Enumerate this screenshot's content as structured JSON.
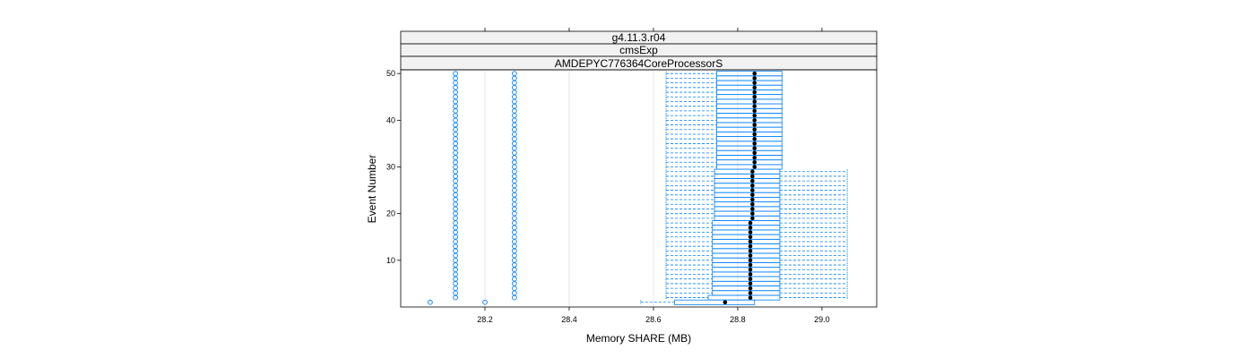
{
  "chart_data": {
    "type": "boxplot",
    "panel_strips": [
      "g4.11.3.r04",
      "cmsExp",
      "AMDEPYC776364CoreProcessorS"
    ],
    "xlabel": "Memory SHARE (MB)",
    "ylabel": "Event Number",
    "xlim": [
      28.0,
      29.13
    ],
    "ylim": [
      0,
      50.8
    ],
    "x_ticks": [
      28.2,
      28.4,
      28.6,
      28.8,
      29.0
    ],
    "x_tick_labels": [
      "28.2",
      "28.4",
      "28.6",
      "28.8",
      "29.0"
    ],
    "y_ticks": [
      10,
      20,
      30,
      40,
      50
    ],
    "y_tick_labels": [
      "10",
      "20",
      "30",
      "40",
      "50"
    ],
    "grid_x": [
      28.2,
      28.4,
      28.6,
      28.8
    ],
    "colors": {
      "box": "#0080ff",
      "median": "#000000",
      "strip": "#f2f2f2",
      "outlier": "#0080ff"
    },
    "event1": {
      "y": 1,
      "whisker_low": 28.57,
      "q1": 28.65,
      "median": 28.77,
      "q3": 28.84,
      "whisker_high": 28.84,
      "outliers": [
        28.07,
        28.2
      ]
    },
    "events": {
      "y_from": 2,
      "y_to": 50,
      "whisker_low": 28.63,
      "outliers": [
        28.13,
        28.27
      ],
      "groups": [
        {
          "y_from": 2,
          "y_to": 2,
          "q1": 28.73,
          "median": 28.83,
          "q3": 28.9,
          "whisker_high": 29.06
        },
        {
          "y_from": 3,
          "y_to": 3,
          "q1": 28.74,
          "median": 28.83,
          "q3": 28.9,
          "whisker_high": 29.06
        },
        {
          "y_from": 4,
          "y_to": 18,
          "q1": 28.74,
          "median": 28.83,
          "q3": 28.9,
          "whisker_high": 29.06
        },
        {
          "y_from": 19,
          "y_to": 29,
          "q1": 28.745,
          "median": 28.835,
          "q3": 28.9,
          "whisker_high": 29.06
        },
        {
          "y_from": 30,
          "y_to": 50,
          "q1": 28.75,
          "median": 28.84,
          "q3": 28.905,
          "whisker_high": 28.905
        }
      ]
    }
  }
}
